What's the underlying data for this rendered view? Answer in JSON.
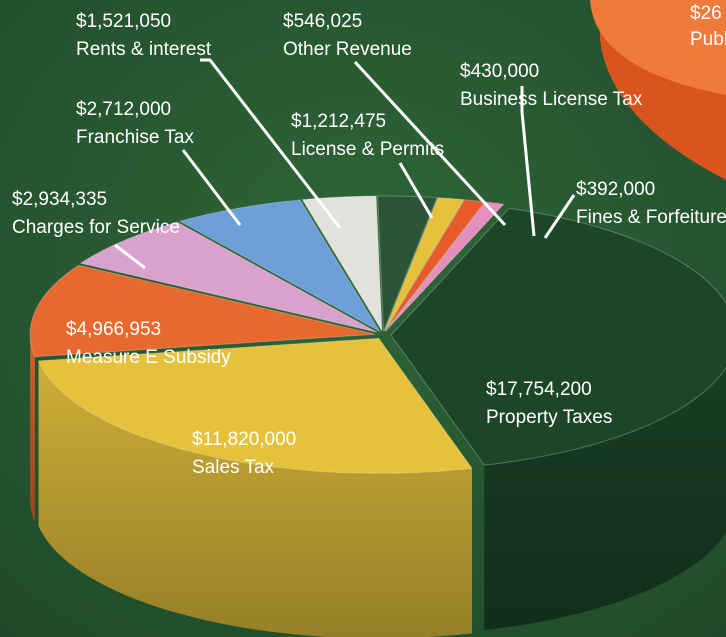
{
  "chart_data": {
    "type": "pie",
    "categories": [
      "Property Taxes",
      "Sales Tax",
      "Measure E Subsidy",
      "Charges for Service",
      "Franchise Tax",
      "Rents & interest",
      "License & Permits",
      "Other Revenue",
      "Business License Tax",
      "Fines & Forfeitures"
    ],
    "values": [
      17754200,
      11820000,
      4966953,
      2934335,
      2712000,
      1521050,
      1212475,
      546025,
      430000,
      392000
    ],
    "value_labels": [
      "$17,754,200",
      "$11,820,000",
      "$4,966,953",
      "$2,934,335",
      "$2,712,000",
      "$1,521,050",
      "$1,212,475",
      "$546,025",
      "$430,000",
      "$392,000"
    ],
    "colors": [
      "#1d4628",
      "#e6c23c",
      "#e8692e",
      "#d8a2cc",
      "#6e9fd8",
      "#e2e2dc",
      "#2b5436",
      "#e6c23c",
      "#ea5a28",
      "#e58fbc"
    ],
    "annotations": [
      "$26",
      "Publ"
    ]
  }
}
